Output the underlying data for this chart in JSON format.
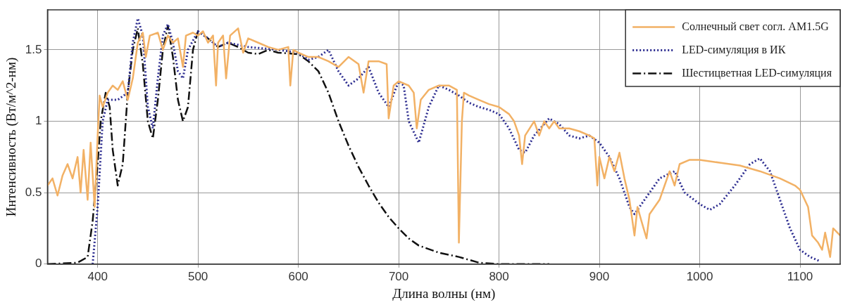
{
  "chart_data": {
    "type": "line",
    "xlabel": "Длина волны (нм)",
    "ylabel": "Интенсивность (Вт/м^2-нм)",
    "xlim": [
      350,
      1140
    ],
    "ylim": [
      0,
      1.78
    ],
    "xticks": [
      400,
      500,
      600,
      700,
      800,
      900,
      1000,
      1100
    ],
    "yticks": [
      0,
      0.5,
      1,
      1.5
    ],
    "grid": true,
    "legend": "top right",
    "marker": "none",
    "series": [
      {
        "name": "Солнечный свет согл. AM1.5G",
        "color": "#f2b165",
        "line_style": "solid",
        "x": [
          350,
          355,
          360,
          365,
          370,
          375,
          380,
          383,
          386,
          390,
          393,
          397,
          400,
          402,
          405,
          410,
          415,
          420,
          425,
          430,
          435,
          440,
          445,
          448,
          452,
          460,
          465,
          470,
          475,
          480,
          485,
          488,
          495,
          500,
          505,
          510,
          515,
          518,
          520,
          525,
          528,
          532,
          540,
          545,
          550,
          560,
          570,
          580,
          590,
          592,
          595,
          600,
          610,
          620,
          630,
          640,
          650,
          660,
          665,
          670,
          680,
          688,
          690,
          695,
          700,
          710,
          715,
          718,
          722,
          730,
          740,
          750,
          758,
          760,
          763,
          765,
          770,
          780,
          790,
          800,
          810,
          815,
          820,
          823,
          826,
          835,
          840,
          845,
          850,
          855,
          860,
          870,
          880,
          890,
          895,
          898,
          900,
          905,
          910,
          915,
          920,
          925,
          930,
          935,
          938,
          942,
          947,
          950,
          955,
          960,
          965,
          970,
          975,
          980,
          990,
          1000,
          1020,
          1040,
          1060,
          1080,
          1095,
          1100,
          1108,
          1112,
          1118,
          1122,
          1125,
          1130,
          1133,
          1140
        ],
        "values": [
          0.55,
          0.6,
          0.48,
          0.62,
          0.7,
          0.6,
          0.75,
          0.5,
          0.8,
          0.45,
          0.85,
          0.4,
          0.9,
          1.18,
          1.1,
          1.2,
          1.25,
          1.22,
          1.28,
          1.15,
          1.3,
          1.55,
          1.62,
          1.45,
          1.6,
          1.62,
          1.5,
          1.6,
          1.55,
          1.58,
          1.38,
          1.6,
          1.62,
          1.6,
          1.63,
          1.55,
          1.6,
          1.25,
          1.55,
          1.6,
          1.3,
          1.6,
          1.65,
          1.48,
          1.58,
          1.55,
          1.52,
          1.5,
          1.52,
          1.25,
          1.5,
          1.48,
          1.45,
          1.45,
          1.42,
          1.38,
          1.45,
          1.4,
          1.2,
          1.42,
          1.42,
          1.4,
          1.02,
          1.25,
          1.28,
          1.25,
          1.2,
          0.95,
          1.15,
          1.22,
          1.25,
          1.25,
          1.22,
          0.15,
          1.0,
          1.2,
          1.18,
          1.15,
          1.12,
          1.1,
          1.05,
          1.0,
          0.9,
          0.7,
          0.9,
          1.0,
          0.9,
          1.0,
          0.95,
          1.0,
          0.95,
          0.95,
          0.93,
          0.9,
          0.88,
          0.55,
          0.75,
          0.6,
          0.75,
          0.65,
          0.78,
          0.6,
          0.45,
          0.2,
          0.4,
          0.3,
          0.18,
          0.35,
          0.4,
          0.45,
          0.55,
          0.65,
          0.55,
          0.7,
          0.73,
          0.73,
          0.71,
          0.69,
          0.65,
          0.6,
          0.55,
          0.52,
          0.4,
          0.2,
          0.15,
          0.1,
          0.22,
          0.05,
          0.25,
          0.2
        ]
      },
      {
        "name": "LED-симуляция в ИК",
        "color": "#2b2b8f",
        "line_style": "dotted",
        "x": [
          395,
          400,
          405,
          410,
          420,
          430,
          435,
          440,
          445,
          450,
          455,
          460,
          465,
          470,
          475,
          480,
          485,
          490,
          500,
          510,
          520,
          530,
          550,
          580,
          600,
          610,
          620,
          630,
          640,
          650,
          660,
          670,
          680,
          690,
          700,
          705,
          710,
          720,
          730,
          740,
          750,
          760,
          770,
          780,
          790,
          800,
          810,
          820,
          826,
          835,
          850,
          860,
          870,
          880,
          890,
          900,
          910,
          920,
          930,
          935,
          945,
          960,
          975,
          985,
          1000,
          1010,
          1020,
          1035,
          1050,
          1060,
          1070,
          1080,
          1090,
          1100,
          1110,
          1120
        ],
        "values": [
          0,
          0.4,
          1.0,
          1.15,
          1.15,
          1.2,
          1.55,
          1.72,
          1.6,
          1.1,
          0.95,
          1.3,
          1.6,
          1.68,
          1.55,
          1.35,
          1.3,
          1.5,
          1.63,
          1.58,
          1.52,
          1.55,
          1.52,
          1.5,
          1.48,
          1.43,
          1.45,
          1.5,
          1.35,
          1.25,
          1.3,
          1.38,
          1.2,
          1.1,
          1.28,
          1.25,
          1.0,
          0.85,
          1.1,
          1.25,
          1.22,
          1.18,
          1.13,
          1.1,
          1.08,
          1.05,
          0.95,
          0.8,
          0.78,
          0.9,
          1.02,
          0.98,
          0.9,
          0.88,
          0.9,
          0.85,
          0.75,
          0.6,
          0.4,
          0.35,
          0.45,
          0.6,
          0.65,
          0.5,
          0.42,
          0.38,
          0.42,
          0.55,
          0.7,
          0.74,
          0.65,
          0.45,
          0.25,
          0.1,
          0.05,
          0.02
        ]
      },
      {
        "name": "Шестицветная LED-симуляция",
        "color": "#111111",
        "line_style": "dashdot",
        "x": [
          350,
          380,
          390,
          395,
          400,
          403,
          408,
          412,
          415,
          420,
          425,
          430,
          435,
          440,
          445,
          450,
          455,
          460,
          465,
          470,
          475,
          480,
          485,
          490,
          495,
          500,
          510,
          520,
          530,
          540,
          550,
          560,
          570,
          580,
          600,
          610,
          620,
          630,
          640,
          650,
          660,
          670,
          680,
          690,
          700,
          710,
          720,
          740,
          760,
          770,
          780,
          800,
          850
        ],
        "values": [
          0,
          0.01,
          0.05,
          0.3,
          0.7,
          1.0,
          1.2,
          1.1,
          0.8,
          0.55,
          0.7,
          1.2,
          1.5,
          1.65,
          1.4,
          1.0,
          0.88,
          1.15,
          1.5,
          1.67,
          1.45,
          1.15,
          1.0,
          1.1,
          1.5,
          1.63,
          1.58,
          1.52,
          1.55,
          1.52,
          1.48,
          1.47,
          1.5,
          1.48,
          1.47,
          1.42,
          1.35,
          1.2,
          1.0,
          0.83,
          0.68,
          0.55,
          0.43,
          0.33,
          0.25,
          0.18,
          0.13,
          0.08,
          0.05,
          0.03,
          0.01,
          0,
          0
        ]
      }
    ]
  }
}
